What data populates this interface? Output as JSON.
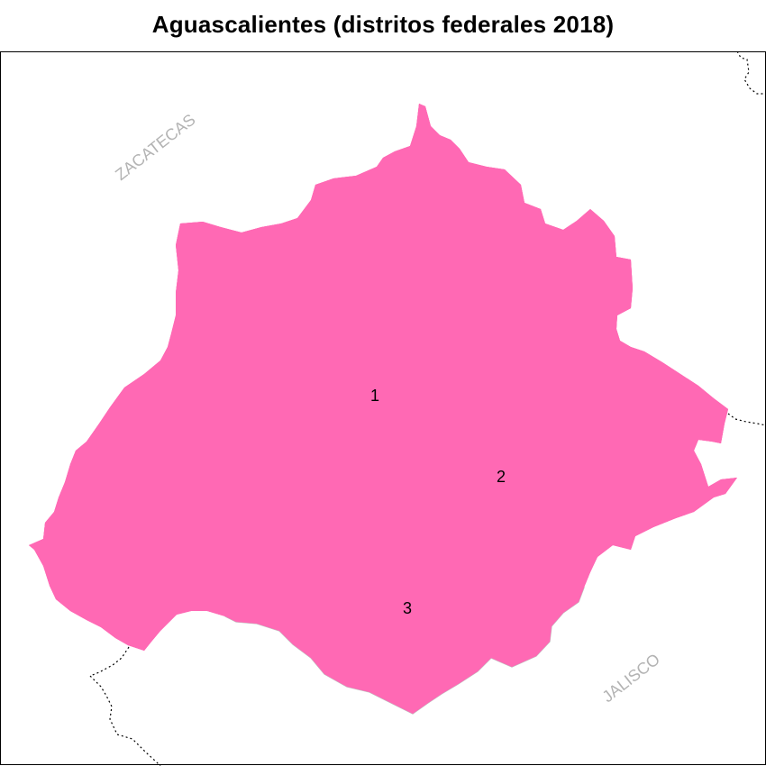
{
  "title": "Aguascalientes (distritos federales 2018)",
  "colors": {
    "district_1_fill": "#ff69b4",
    "district_2_fill": "#ffffff",
    "district_3_fill": "#ffffff",
    "internal_border": "#bdbdbd",
    "state_border_outer": "#000000",
    "state_border_inner": "#ff0000",
    "neighbor_border": "#000000",
    "neighbor_label": "#b3b3b3"
  },
  "districts": [
    {
      "id": "1",
      "label": "1"
    },
    {
      "id": "2",
      "label": "2"
    },
    {
      "id": "3",
      "label": "3"
    }
  ],
  "neighbors": [
    {
      "name": "ZACATECAS"
    },
    {
      "name": "JALISCO"
    }
  ]
}
